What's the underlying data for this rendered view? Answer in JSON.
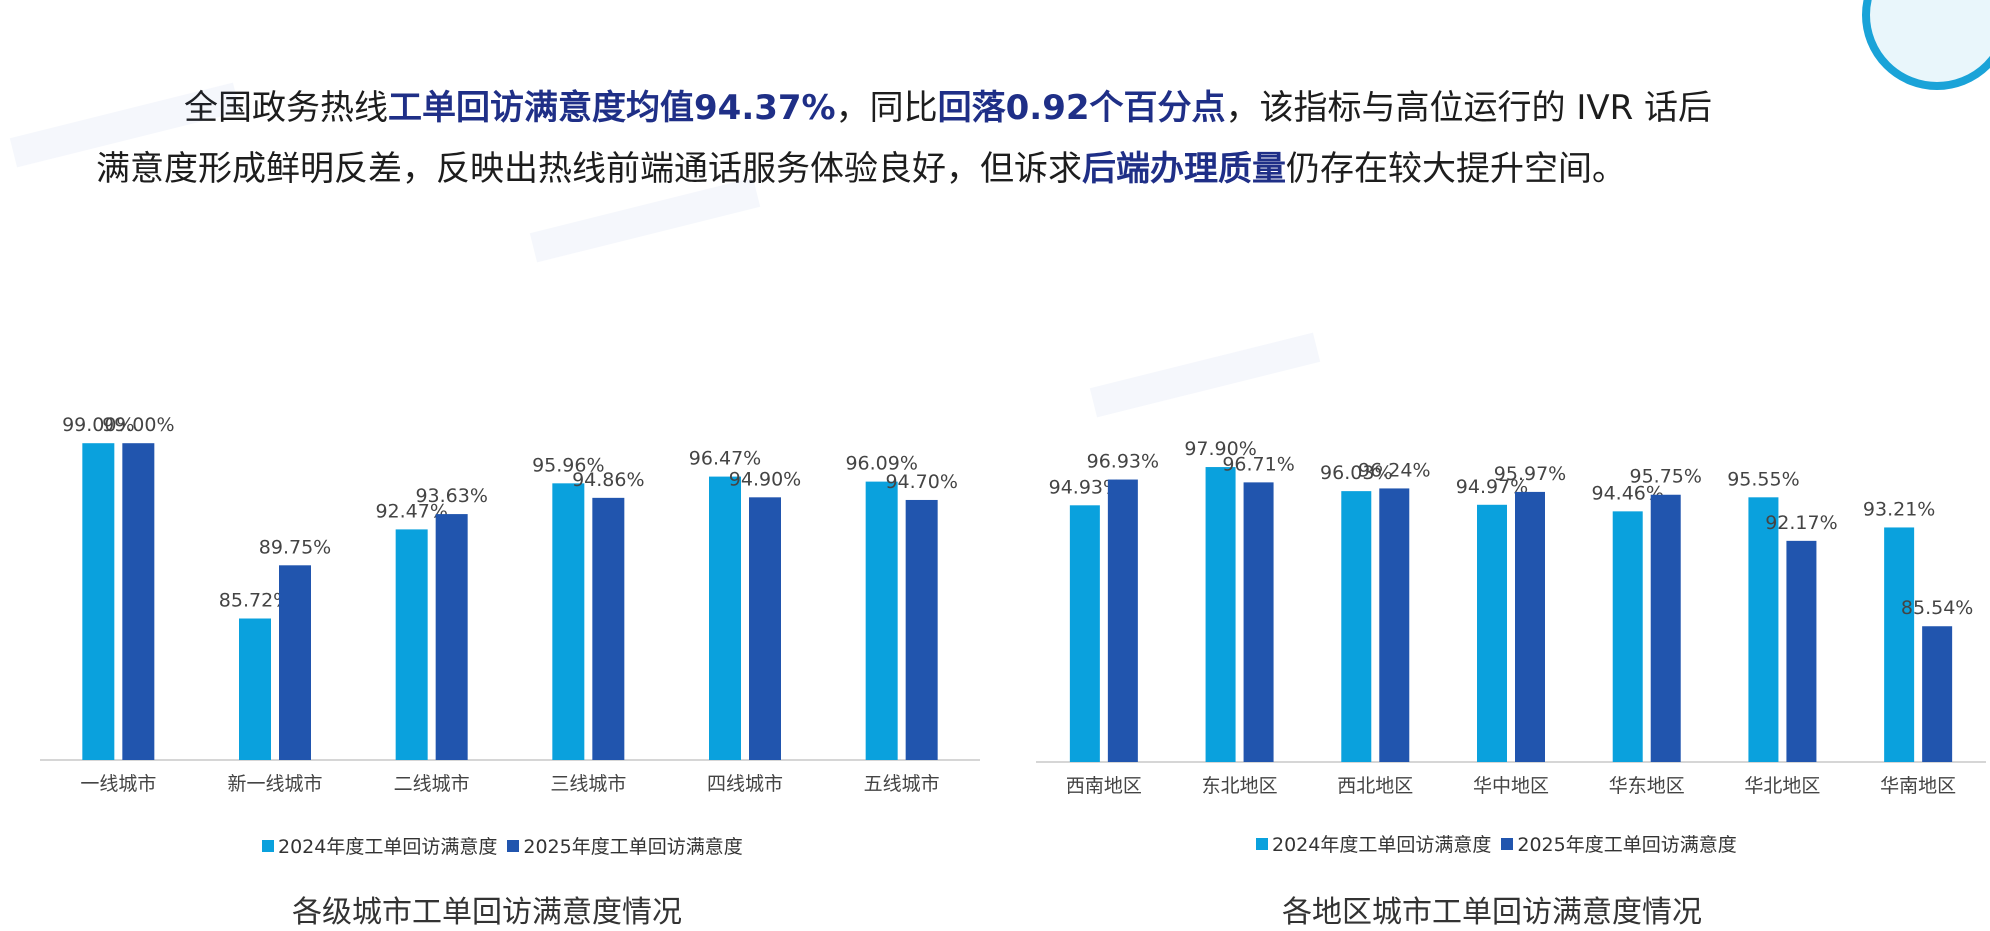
{
  "summary": {
    "line1_pre": "全国政务热线",
    "line1_b1": "工单回访满意度均值94.37%",
    "line1_mid": "，同比",
    "line1_b2": "回落0.92个百分点",
    "line1_post": "，该指标与高位运行的 IVR 话后",
    "line2_pre": "满意度形成鲜明反差，反映出热线前端通话服务体验良好，但诉求",
    "line2_b": "后端办理质量",
    "line2_post": "仍存在较大提升空间。"
  },
  "colors": {
    "series2024": "#0aa1dd",
    "series2025": "#2155ae",
    "emphasis": "#1f2f87"
  },
  "chart_data": [
    {
      "type": "bar",
      "categories": [
        "一线城市",
        "新一线城市",
        "二线城市",
        "三线城市",
        "四线城市",
        "五线城市"
      ],
      "series": [
        {
          "name": "2024年度工单回访满意度",
          "values": [
            99.0,
            85.72,
            92.47,
            95.96,
            96.47,
            96.09
          ]
        },
        {
          "name": "2025年度工单回访满意度",
          "values": [
            99.0,
            89.75,
            93.63,
            94.86,
            94.9,
            94.7
          ]
        }
      ],
      "value_labels": [
        [
          "99.00%",
          "85.72%",
          "92.47%",
          "95.96%",
          "96.47%",
          "96.09%"
        ],
        [
          "99.00%",
          "89.75%",
          "93.63%",
          "94.86%",
          "94.90%",
          "94.70%"
        ]
      ],
      "ylim": [
        75,
        100
      ],
      "legend": "bottom",
      "caption": "各级城市工单回访满意度情况"
    },
    {
      "type": "bar",
      "categories": [
        "西南地区",
        "东北地区",
        "西北地区",
        "华中地区",
        "华东地区",
        "华北地区",
        "华南地区"
      ],
      "series": [
        {
          "name": "2024年度工单回访满意度",
          "values": [
            94.93,
            97.9,
            96.03,
            94.97,
            94.46,
            95.55,
            93.21
          ]
        },
        {
          "name": "2025年度工单回访满意度",
          "values": [
            96.93,
            96.71,
            96.24,
            95.97,
            95.75,
            92.17,
            85.54
          ]
        }
      ],
      "value_labels": [
        [
          "94.93%",
          "97.90%",
          "96.03%",
          "94.97%",
          "94.46%",
          "95.55%",
          "93.21%"
        ],
        [
          "96.93%",
          "96.71%",
          "96.24%",
          "95.97%",
          "95.75%",
          "92.17%",
          "85.54%"
        ]
      ],
      "ylim": [
        75,
        100
      ],
      "legend": "bottom",
      "caption": "各地区城市工单回访满意度情况"
    }
  ]
}
